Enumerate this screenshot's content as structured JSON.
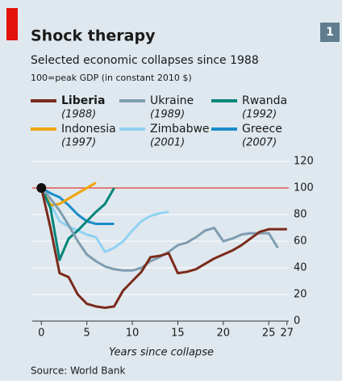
{
  "chart_data": {
    "type": "line",
    "title": "Shock therapy",
    "subtitle": "Selected economic collapses since 1988",
    "note": "100=peak GDP (in constant 2010 $)",
    "badge": "1",
    "xlabel": "Years since collapse",
    "source": "Source: World Bank",
    "x": [
      0,
      1,
      2,
      3,
      4,
      5,
      6,
      7,
      8,
      9,
      10,
      11,
      12,
      13,
      14,
      15,
      16,
      17,
      18,
      19,
      20,
      21,
      22,
      23,
      24,
      25,
      26,
      27
    ],
    "xlim": [
      -1,
      27.2
    ],
    "xticks": [
      0,
      5,
      10,
      15,
      20,
      25,
      27
    ],
    "ylim": [
      0,
      120
    ],
    "yticks": [
      0,
      20,
      40,
      60,
      80,
      100,
      120
    ],
    "highlight": 100,
    "grid": true,
    "series": [
      {
        "name": "Liberia",
        "year": "(1988)",
        "color": "#7b2a1c",
        "values": [
          100,
          70,
          36,
          33,
          20,
          13,
          11,
          10,
          11,
          23,
          30,
          37,
          48,
          49,
          51,
          36,
          37,
          39,
          43,
          47,
          50,
          53,
          57,
          62,
          67,
          69,
          69,
          69
        ]
      },
      {
        "name": "Ukraine",
        "year": "(1989)",
        "color": "#7f9db1",
        "values": [
          100,
          92,
          83,
          72,
          60,
          50,
          45,
          41,
          39,
          38,
          38,
          40,
          45,
          48,
          52,
          57,
          59,
          63,
          68,
          70,
          60,
          62,
          65,
          66,
          66,
          66,
          55,
          null
        ]
      },
      {
        "name": "Rwanda",
        "year": "(1992)",
        "color": "#00857a",
        "values": [
          100,
          85,
          46,
          62,
          68,
          75,
          82,
          88,
          100,
          null,
          null,
          null,
          null,
          null,
          null,
          null,
          null,
          null,
          null,
          null,
          null,
          null,
          null,
          null,
          null,
          null,
          null,
          null
        ]
      },
      {
        "name": "Indonesia",
        "year": "(1997)",
        "color": "#f0a500",
        "values": [
          100,
          87,
          88,
          92,
          96,
          100,
          104,
          null,
          null,
          null,
          null,
          null,
          null,
          null,
          null,
          null,
          null,
          null,
          null,
          null,
          null,
          null,
          null,
          null,
          null,
          null,
          null,
          null
        ]
      },
      {
        "name": "Zimbabwe",
        "year": "(2001)",
        "color": "#90d2f2",
        "values": [
          100,
          88,
          75,
          71,
          68,
          65,
          63,
          52,
          55,
          60,
          68,
          75,
          79,
          81,
          82,
          null,
          null,
          null,
          null,
          null,
          null,
          null,
          null,
          null,
          null,
          null,
          null,
          null
        ]
      },
      {
        "name": "Greece",
        "year": "(2007)",
        "color": "#1b8ccb",
        "values": [
          100,
          96,
          93,
          87,
          80,
          75,
          73,
          73,
          73,
          null,
          null,
          null,
          null,
          null,
          null,
          null,
          null,
          null,
          null,
          null,
          null,
          null,
          null,
          null,
          null,
          null,
          null,
          null
        ]
      }
    ]
  }
}
